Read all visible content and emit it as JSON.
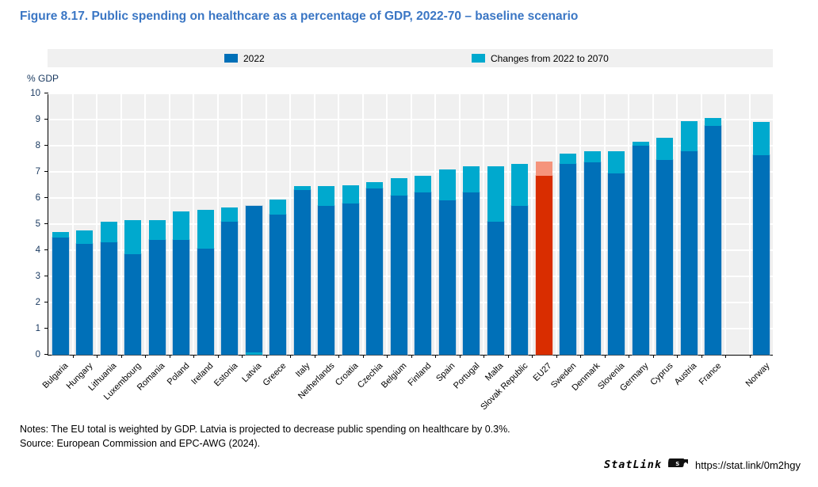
{
  "title": "Figure 8.17. Public spending on healthcare as a percentage of GDP, 2022-70 – baseline scenario",
  "y_axis_label": "% GDP",
  "legend": [
    {
      "label": "2022",
      "color": "#0070b8"
    },
    {
      "label": "Changes from 2022 to 2070",
      "color": "#00a9ce"
    }
  ],
  "notes": "Notes: The EU total is weighted by GDP. Latvia is projected to decrease public spending on healthcare by 0.3%.",
  "source": "Source: European Commission and EPC-AWG (2024).",
  "statlink": {
    "label": "StatLink",
    "url": "https://stat.link/0m2hgy"
  },
  "chart_data": {
    "type": "bar",
    "stacked": true,
    "title": "Public spending on healthcare as a percentage of GDP, 2022-70 – baseline scenario",
    "xlabel": "",
    "ylabel": "% GDP",
    "ylim": [
      0,
      10
    ],
    "yticks": [
      0,
      1,
      2,
      3,
      4,
      5,
      6,
      7,
      8,
      9,
      10
    ],
    "grid": true,
    "legend_position": "top",
    "categories": [
      "Bulgaria",
      "Hungary",
      "Lithuania",
      "Luxembourg",
      "Romania",
      "Poland",
      "Ireland",
      "Estonia",
      "Latvia",
      "Greece",
      "Italy",
      "Netherlands",
      "Croatia",
      "Czechia",
      "Belgium",
      "Finland",
      "Spain",
      "Portugal",
      "Malta",
      "Slovak Republic",
      "EU27",
      "Sweden",
      "Denmark",
      "Slovenia",
      "Germany",
      "Cyprus",
      "Austria",
      "France",
      "Norway"
    ],
    "series": [
      {
        "name": "2022",
        "values": [
          4.5,
          4.25,
          4.3,
          3.85,
          4.4,
          4.4,
          4.05,
          5.1,
          5.7,
          5.35,
          6.3,
          5.7,
          5.8,
          6.35,
          6.1,
          6.2,
          5.9,
          6.2,
          5.1,
          5.7,
          6.85,
          7.3,
          7.35,
          6.95,
          8.0,
          7.45,
          7.8,
          8.75,
          7.65
        ]
      },
      {
        "name": "Changes from 2022 to 2070",
        "values": [
          0.2,
          0.5,
          0.8,
          1.3,
          0.75,
          1.1,
          1.5,
          0.55,
          -0.3,
          0.6,
          0.15,
          0.75,
          0.7,
          0.25,
          0.65,
          0.65,
          1.2,
          1.0,
          2.1,
          1.6,
          0.55,
          0.4,
          0.45,
          0.85,
          0.15,
          0.85,
          1.15,
          0.3,
          1.25
        ]
      }
    ],
    "highlight_category": "EU27",
    "gap_before_category": "Norway",
    "colors": {
      "base": "#0070b8",
      "change": "#00a9ce",
      "highlight_base": "#d92d00",
      "highlight_change": "#f5947c",
      "plot_background": "#f0f0f0",
      "gridline": "#ffffff"
    }
  }
}
